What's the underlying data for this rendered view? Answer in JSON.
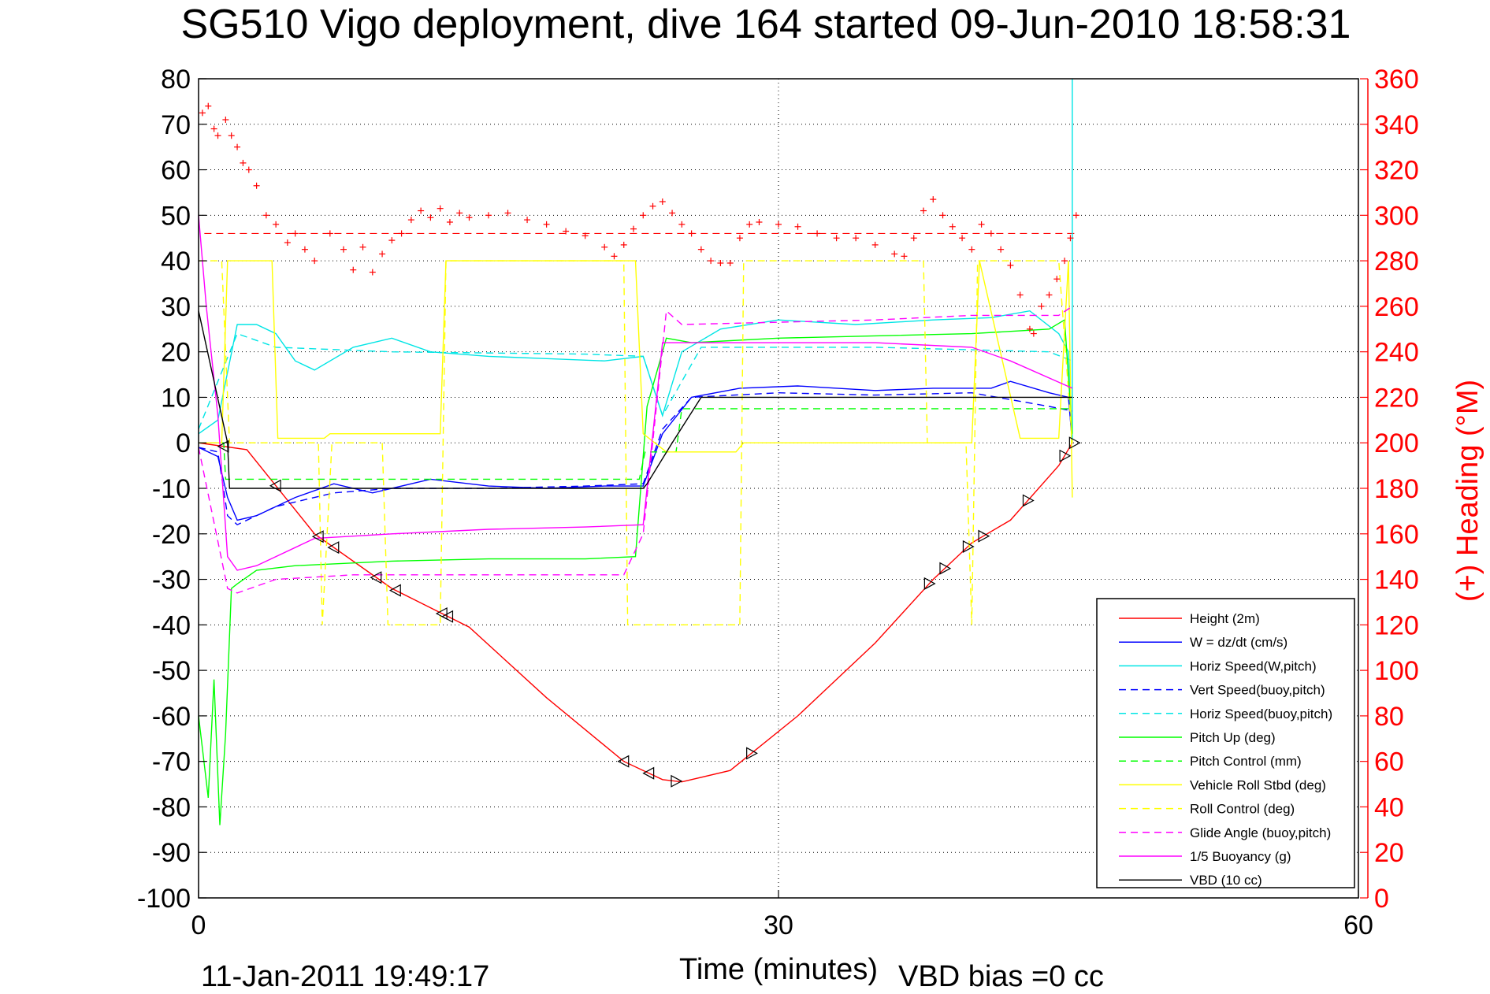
{
  "chart_data": {
    "type": "line",
    "title": "SG510 Vigo deployment, dive 164 started 09-Jun-2010 18:58:31",
    "xlabel": "Time (minutes)",
    "ylabel_right": "(+) Heading (°M)",
    "footer_left": "11-Jan-2011 19:49:17",
    "footer_right": "VBD bias =0 cc",
    "xlim": [
      0,
      60
    ],
    "ylim": [
      -100,
      80
    ],
    "ylim_right": [
      0,
      360
    ],
    "x_ticks": [
      "0",
      "30",
      "60"
    ],
    "y_ticks": [
      "80",
      "70",
      "60",
      "50",
      "40",
      "30",
      "20",
      "10",
      "0",
      "-10",
      "-20",
      "-30",
      "-40",
      "-50",
      "-60",
      "-70",
      "-80",
      "-90",
      "-100"
    ],
    "y_ticks_right": [
      "360",
      "340",
      "320",
      "300",
      "280",
      "260",
      "240",
      "220",
      "200",
      "180",
      "160",
      "140",
      "120",
      "100",
      "80",
      "60",
      "40",
      "20",
      "0"
    ],
    "grid": true,
    "legend_position": "bottom-right",
    "heading_reference": 292,
    "series": [
      {
        "name": "Height (2m)",
        "color": "#ff0000",
        "style": "solid",
        "x": [
          0,
          2.5,
          6,
          10,
          14,
          18,
          22,
          24,
          25,
          27.5,
          31,
          35,
          38,
          40,
          42,
          44.5,
          45.2
        ],
        "y": [
          0,
          -1.5,
          -20,
          -32,
          -40.5,
          -56,
          -70,
          -74,
          -74.5,
          -72,
          -60,
          -44,
          -30,
          -22,
          -17,
          -5,
          0
        ]
      },
      {
        "name": "W = dz/dt (cm/s)",
        "color": "#0000ff",
        "style": "solid",
        "x": [
          0,
          1,
          1.5,
          2,
          3,
          5,
          7,
          9,
          12,
          15,
          18,
          21,
          23,
          24,
          25.5,
          28,
          31,
          35,
          38,
          41,
          42,
          44,
          45,
          45.2
        ],
        "y": [
          -1,
          -3,
          -12,
          -17,
          -16,
          -12,
          -9,
          -11,
          -8,
          -9.5,
          -10,
          -9.5,
          -9.5,
          2,
          10,
          12,
          12.5,
          11.5,
          12,
          12,
          13.5,
          11,
          10,
          0
        ]
      },
      {
        "name": "Horiz Speed(W,pitch)",
        "color": "#00e5e5",
        "style": "solid",
        "x": [
          0,
          1,
          2,
          3,
          4,
          5,
          6,
          8,
          10,
          12,
          15,
          18,
          21,
          23,
          24,
          25,
          27,
          30,
          34,
          38,
          41,
          43,
          44.5,
          45,
          45.2,
          45.2
        ],
        "y": [
          2,
          5,
          26,
          26,
          24,
          18,
          16,
          21,
          23,
          20,
          19,
          18.5,
          18,
          19,
          6,
          20,
          25,
          27,
          26,
          27,
          27.5,
          29,
          24,
          20,
          0,
          80
        ]
      },
      {
        "name": "Vert Speed(buoy,pitch)",
        "color": "#0000ff",
        "style": "dashed",
        "x": [
          0,
          1,
          1.5,
          2,
          4,
          7,
          10,
          15,
          20,
          23,
          24,
          25.5,
          30,
          35,
          40,
          44,
          45.2
        ],
        "y": [
          -1,
          -2,
          -16,
          -18,
          -14,
          -11,
          -10,
          -10,
          -9.5,
          -9,
          3,
          10,
          11,
          10.5,
          11,
          8,
          7
        ]
      },
      {
        "name": "Horiz Speed(buoy,pitch)",
        "color": "#00e5e5",
        "style": "dashed",
        "x": [
          0,
          2,
          4,
          10,
          20,
          23,
          24,
          26,
          35,
          44,
          45.2
        ],
        "y": [
          3,
          24,
          21,
          20,
          19.5,
          19,
          6,
          21,
          21,
          20,
          18
        ]
      },
      {
        "name": "Pitch Up (deg)",
        "color": "#00ff00",
        "style": "solid",
        "x": [
          0,
          0.5,
          0.8,
          1.1,
          1.4,
          1.7,
          2,
          3,
          5,
          10,
          15,
          20,
          22.6,
          23.2,
          24.2,
          25.5,
          30,
          35,
          40,
          44,
          44.8,
          45.2
        ],
        "y": [
          -60,
          -78,
          -52,
          -84,
          -64,
          -32,
          -31,
          -28,
          -27,
          -26,
          -25.5,
          -25.5,
          -25,
          8,
          23,
          22,
          23,
          23.5,
          24,
          25,
          27,
          2
        ]
      },
      {
        "name": "Pitch Control (mm)",
        "color": "#00ff00",
        "style": "dashed",
        "x": [
          0,
          1.3,
          1.4,
          22.8,
          23.1,
          24.7,
          25,
          45.2
        ],
        "y": [
          0,
          0,
          -8,
          -8,
          -2,
          -2,
          7.5,
          7.5
        ]
      },
      {
        "name": "Vehicle Roll Stbd (deg)",
        "color": "#ffff00",
        "style": "solid",
        "x": [
          0,
          1.2,
          1.5,
          3.8,
          4.1,
          6.5,
          6.8,
          12.5,
          12.8,
          22.6,
          23,
          24.2,
          27.8,
          28.2,
          40,
          40.4,
          42.5,
          44.5,
          45,
          45.2
        ],
        "y": [
          0,
          0,
          40,
          40,
          1,
          1,
          2,
          2,
          40,
          40,
          2,
          -2,
          -2,
          0,
          0,
          40,
          1,
          1,
          40,
          -12
        ]
      },
      {
        "name": "Roll Control (deg)",
        "color": "#ffff00",
        "style": "dashed",
        "x": [
          0,
          1.2,
          1.6,
          6.2,
          6.4,
          6.9,
          9.5,
          9.8,
          12.5,
          12.8,
          22,
          22.2,
          28,
          28.2,
          37.5,
          37.7,
          39.7,
          40,
          40.3,
          44.5,
          45.2
        ],
        "y": [
          40,
          40,
          0,
          0,
          -40,
          0,
          0,
          -40,
          -40,
          40,
          40,
          -40,
          -40,
          40,
          40,
          0,
          0,
          -40,
          40,
          40,
          0
        ]
      },
      {
        "name": "Glide Angle (buoy,pitch)",
        "color": "#ff00ff",
        "style": "dashed",
        "x": [
          0,
          1.5,
          2,
          4,
          8,
          15,
          22,
          23,
          24.2,
          25,
          30,
          35,
          40,
          44.5,
          45.2
        ],
        "y": [
          -1,
          -32,
          -33,
          -30,
          -29,
          -29,
          -29,
          -20,
          29,
          26,
          26.5,
          27,
          28,
          28,
          30
        ]
      },
      {
        "name": "1/5 Buoyancy (g)",
        "color": "#ff00ff",
        "style": "solid",
        "x": [
          0,
          0.4,
          1,
          1.5,
          2,
          3,
          6,
          10,
          15,
          20,
          23,
          24,
          25.5,
          30,
          35,
          40,
          42,
          45.2
        ],
        "y": [
          50,
          30,
          6,
          -25,
          -28,
          -27,
          -21,
          -20,
          -19,
          -18.5,
          -18,
          22,
          22,
          22,
          22,
          21,
          18,
          12
        ]
      },
      {
        "name": "VBD (10 cc)",
        "color": "#000000",
        "style": "solid",
        "x": [
          0,
          1.5,
          1.6,
          23,
          23.2,
          24.5,
          26,
          45.2
        ],
        "y": [
          29,
          0,
          -10,
          -10,
          -9,
          0,
          10,
          10
        ]
      }
    ],
    "heading_series": {
      "name": "(+) Heading",
      "x": [
        0.2,
        0.5,
        0.8,
        1.0,
        1.4,
        1.7,
        2.0,
        2.3,
        2.6,
        3.0,
        3.5,
        4.0,
        4.6,
        5.0,
        5.5,
        6.0,
        6.8,
        7.5,
        8.0,
        8.5,
        9.0,
        9.5,
        10.0,
        10.5,
        11.0,
        11.5,
        12.0,
        12.5,
        13.0,
        13.5,
        14.0,
        15.0,
        16.0,
        17.0,
        18.0,
        19.0,
        20.0,
        21.0,
        21.5,
        22.0,
        22.5,
        23.0,
        23.5,
        24.0,
        24.5,
        25.0,
        25.5,
        26.0,
        26.5,
        27.0,
        27.5,
        28.0,
        28.5,
        29.0,
        30.0,
        31.0,
        32.0,
        33.0,
        34.0,
        35.0,
        36.0,
        36.5,
        37.0,
        37.5,
        38.0,
        38.5,
        39.0,
        39.5,
        40.0,
        40.5,
        41.0,
        41.5,
        42.0,
        42.5,
        43.0,
        43.2,
        43.6,
        44.0,
        44.4,
        44.8,
        45.1,
        45.4
      ],
      "y": [
        345,
        348,
        338,
        335,
        342,
        335,
        330,
        323,
        320,
        313,
        300,
        296,
        288,
        292,
        285,
        280,
        292,
        285,
        276,
        286,
        275,
        283,
        289,
        292,
        298,
        302,
        299,
        303,
        297,
        301,
        299,
        300,
        301,
        298,
        296,
        293,
        291,
        286,
        282,
        287,
        294,
        300,
        304,
        306,
        301,
        296,
        292,
        285,
        280,
        279,
        279,
        290,
        296,
        297,
        296,
        295,
        292,
        290,
        290,
        287,
        283,
        282,
        290,
        302,
        307,
        300,
        295,
        290,
        285,
        296,
        292,
        285,
        278,
        265,
        250,
        248,
        260,
        265,
        272,
        280,
        290,
        300
      ]
    }
  }
}
